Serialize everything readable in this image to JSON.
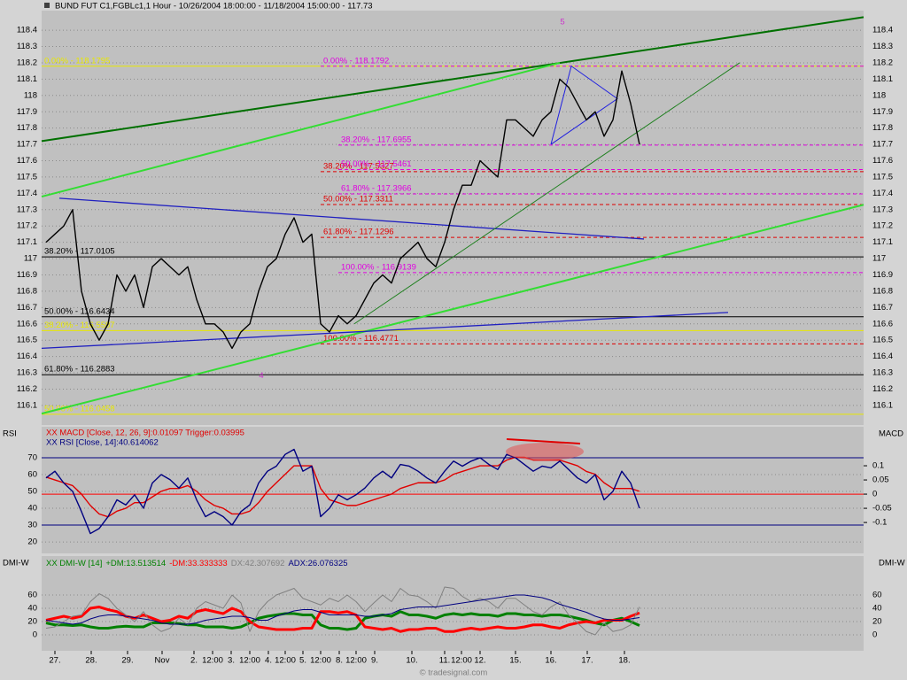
{
  "chart_data": [
    {
      "type": "line",
      "title": "BUND FUT C1,FGBLc1,1 Hour - 10/26/2004 18:00:00 - 11/18/2004 15:00:00 - 117.73",
      "x": [
        0,
        1,
        2,
        3,
        4,
        5,
        6,
        7,
        8,
        9,
        10,
        11,
        12,
        13,
        14,
        15,
        16,
        17,
        18,
        19,
        20,
        21,
        22,
        23,
        24,
        25,
        26,
        27,
        28,
        29,
        30,
        31,
        32,
        33,
        34,
        35,
        36,
        37,
        38,
        39,
        40,
        41,
        42,
        43,
        44,
        45,
        46,
        47,
        48,
        49,
        50,
        51,
        52,
        53,
        54,
        55,
        56,
        57,
        58,
        59,
        60,
        61,
        62,
        63,
        64,
        65,
        66,
        67
      ],
      "xlim": [
        -0.5,
        92.3
      ],
      "values": [
        117.1,
        117.15,
        117.2,
        117.3,
        116.8,
        116.6,
        116.5,
        116.6,
        116.9,
        116.8,
        116.9,
        116.7,
        116.95,
        117.0,
        116.95,
        116.9,
        116.95,
        116.75,
        116.6,
        116.6,
        116.55,
        116.45,
        116.55,
        116.6,
        116.8,
        116.95,
        117.0,
        117.15,
        117.25,
        117.1,
        117.15,
        116.6,
        116.55,
        116.65,
        116.6,
        116.65,
        116.75,
        116.85,
        116.9,
        116.85,
        117.0,
        117.05,
        117.1,
        117.0,
        116.95,
        117.1,
        117.3,
        117.45,
        117.45,
        117.6,
        117.55,
        117.5,
        117.85,
        117.85,
        117.8,
        117.75,
        117.85,
        117.9,
        118.1,
        118.05,
        117.95,
        117.85,
        117.9,
        117.75,
        117.85,
        118.15,
        117.95,
        117.7
      ],
      "color": "#000000",
      "ylim": [
        115.98,
        118.52
      ],
      "yticks": [
        116.1,
        116.2,
        116.3,
        116.4,
        116.5,
        116.6,
        116.7,
        116.8,
        116.9,
        117,
        117.1,
        117.2,
        117.3,
        117.4,
        117.5,
        117.6,
        117.7,
        117.8,
        117.9,
        118,
        118.1,
        118.2,
        118.3,
        118.4
      ],
      "grid": true,
      "levels": [
        {
          "label": "0.00% - 118.1795",
          "value": 118.1795,
          "color": "#e8e800",
          "x_from": -0.5,
          "dash": false
        },
        {
          "label": "38.20% - 117.0105",
          "value": 117.0105,
          "color": "#000000",
          "x_from": -0.5,
          "dash": false
        },
        {
          "label": "50.00% - 116.6434",
          "value": 116.6434,
          "color": "#000000",
          "x_from": -0.5,
          "dash": false
        },
        {
          "label": "38.20% - 116.5587",
          "value": 116.5587,
          "color": "#e8e800",
          "x_from": -0.5,
          "dash": false
        },
        {
          "label": "61.80% - 116.2883",
          "value": 116.2883,
          "color": "#000000",
          "x_from": -0.5,
          "dash": false
        },
        {
          "label": "50.00% - 116.0458",
          "value": 116.0458,
          "color": "#e8e800",
          "x_from": -0.5,
          "dash": false
        },
        {
          "label": "61.80% - 117.1296",
          "value": 117.1296,
          "color": "#e00000",
          "x_from": 31,
          "dash": true
        },
        {
          "label": "50.00% - 117.3311",
          "value": 117.3311,
          "color": "#e00000",
          "x_from": 31,
          "dash": true
        },
        {
          "label": "38.20% - 117.5327",
          "value": 117.5327,
          "color": "#e00000",
          "x_from": 31,
          "dash": true
        },
        {
          "label": "100.00% - 116.4771",
          "value": 116.4771,
          "color": "#e00000",
          "x_from": 31,
          "dash": true
        },
        {
          "label": "38.20% - 117.6955",
          "value": 117.6955,
          "color": "#e000e0",
          "x_from": 33,
          "dash": true
        },
        {
          "label": "50.00% - 117.5461",
          "value": 117.5461,
          "color": "#e000e0",
          "x_from": 33,
          "dash": true
        },
        {
          "label": "61.80% - 117.3966",
          "value": 117.3966,
          "color": "#e000e0",
          "x_from": 33,
          "dash": true
        },
        {
          "label": "100.00% - 116.9139",
          "value": 116.9139,
          "color": "#e000e0",
          "x_from": 33,
          "dash": true
        },
        {
          "label": "0.00% - 118.1792",
          "value": 118.1792,
          "color": "#e000e0",
          "x_from": 31,
          "dash": true
        }
      ],
      "trendlines": [
        {
          "color": "#007000",
          "width": 2,
          "x": [
            -0.5,
            92.3
          ],
          "y": [
            117.72,
            118.48
          ]
        },
        {
          "color": "#33dd33",
          "width": 2,
          "x": [
            -0.5,
            58.0
          ],
          "y": [
            117.38,
            118.2
          ]
        },
        {
          "color": "#33dd33",
          "width": 2,
          "x": [
            -0.5,
            92.3
          ],
          "y": [
            116.05,
            117.33
          ]
        },
        {
          "color": "#2020c0",
          "width": 1.3,
          "x": [
            1.5,
            67.5
          ],
          "y": [
            117.37,
            117.12
          ]
        },
        {
          "color": "#2020c0",
          "width": 1.3,
          "x": [
            -0.5,
            77.0
          ],
          "y": [
            116.45,
            116.67
          ]
        },
        {
          "color": "#208020",
          "width": 1,
          "x": [
            34.8,
            78.3
          ],
          "y": [
            116.6,
            118.2
          ]
        },
        {
          "color": "#2020e0",
          "width": 1,
          "x": [
            57.0,
            59.3,
            64.5,
            57.0
          ],
          "y": [
            117.7,
            118.18,
            117.98,
            117.7
          ]
        }
      ],
      "annotations": [
        {
          "text": "5",
          "x": 58.3,
          "y": 118.45,
          "color": "#cc33cc"
        },
        {
          "text": "4",
          "x": 24.3,
          "y": 116.28,
          "color": "#cc33cc"
        }
      ]
    },
    {
      "type": "line",
      "y_label": "RSI",
      "y2_label": "MACD",
      "x": [
        0,
        1,
        2,
        3,
        4,
        5,
        6,
        7,
        8,
        9,
        10,
        11,
        12,
        13,
        14,
        15,
        16,
        17,
        18,
        19,
        20,
        21,
        22,
        23,
        24,
        25,
        26,
        27,
        28,
        29,
        30,
        31,
        32,
        33,
        34,
        35,
        36,
        37,
        38,
        39,
        40,
        41,
        42,
        43,
        44,
        45,
        46,
        47,
        48,
        49,
        50,
        51,
        52,
        53,
        54,
        55,
        56,
        57,
        58,
        59,
        60,
        61,
        62,
        63,
        64,
        65,
        66,
        67
      ],
      "xlim": [
        -0.5,
        92.3
      ],
      "ylim": [
        13.2,
        88.4
      ],
      "yticks": [
        20,
        30,
        40,
        50,
        60,
        70
      ],
      "y2lim": [
        -0.209,
        0.2375
      ],
      "y2ticks": [
        -0.1,
        -0.05,
        0,
        0.05,
        0.1
      ],
      "grid": true,
      "hlines": [
        {
          "value": 70,
          "color": "#000080"
        },
        {
          "value": 30,
          "color": "#000080"
        },
        {
          "value": 0,
          "axis": "y2",
          "color": "#ff0000"
        }
      ],
      "series": [
        {
          "name": "XX MACD [Close, 12, 26, 9]:0.01097 Trigger:0.03995",
          "color": "#e00000",
          "axis": "y2",
          "values": [
            0.06,
            0.05,
            0.04,
            0.03,
            0.0,
            -0.04,
            -0.07,
            -0.08,
            -0.06,
            -0.05,
            -0.03,
            -0.03,
            -0.01,
            0.01,
            0.02,
            0.02,
            0.03,
            0.01,
            -0.02,
            -0.04,
            -0.05,
            -0.07,
            -0.07,
            -0.06,
            -0.03,
            0.01,
            0.04,
            0.07,
            0.1,
            0.1,
            0.1,
            0.02,
            -0.02,
            -0.03,
            -0.04,
            -0.04,
            -0.03,
            -0.02,
            -0.01,
            0.0,
            0.02,
            0.03,
            0.04,
            0.04,
            0.04,
            0.05,
            0.07,
            0.08,
            0.09,
            0.1,
            0.1,
            0.1,
            0.12,
            0.13,
            0.13,
            0.12,
            0.12,
            0.12,
            0.12,
            0.11,
            0.1,
            0.08,
            0.07,
            0.04,
            0.02,
            0.02,
            0.02,
            0.01
          ]
        },
        {
          "name": "XX RSI [Close, 14]:40.614062",
          "color": "#000080",
          "values": [
            58,
            62,
            55,
            50,
            38,
            25,
            28,
            35,
            45,
            42,
            48,
            40,
            55,
            60,
            57,
            52,
            58,
            45,
            35,
            38,
            35,
            30,
            38,
            42,
            55,
            62,
            65,
            72,
            75,
            62,
            65,
            35,
            40,
            48,
            45,
            48,
            52,
            58,
            62,
            58,
            66,
            65,
            62,
            58,
            55,
            62,
            68,
            65,
            68,
            70,
            66,
            63,
            72,
            70,
            66,
            62,
            65,
            64,
            68,
            63,
            58,
            55,
            60,
            45,
            50,
            62,
            55,
            40
          ]
        }
      ]
    },
    {
      "type": "line",
      "title": "XX DMI-W [14]",
      "y_label": "DMI-W",
      "x": [
        0,
        1,
        2,
        3,
        4,
        5,
        6,
        7,
        8,
        9,
        10,
        11,
        12,
        13,
        14,
        15,
        16,
        17,
        18,
        19,
        20,
        21,
        22,
        23,
        24,
        25,
        26,
        27,
        28,
        29,
        30,
        31,
        32,
        33,
        34,
        35,
        36,
        37,
        38,
        39,
        40,
        41,
        42,
        43,
        44,
        45,
        46,
        47,
        48,
        49,
        50,
        51,
        52,
        53,
        54,
        55,
        56,
        57,
        58,
        59,
        60,
        61,
        62,
        63,
        64,
        65,
        66,
        67
      ],
      "xlim": [
        -0.5,
        92.3
      ],
      "ylim": [
        -24,
        118.7
      ],
      "yticks": [
        0,
        20,
        40,
        60
      ],
      "grid": true,
      "xticks": [
        {
          "value": 1,
          "label": "27."
        },
        {
          "value": 5.1,
          "label": "28."
        },
        {
          "value": 9.2,
          "label": "29."
        },
        {
          "value": 13.1,
          "label": "Nov"
        },
        {
          "value": 16.7,
          "label": "2."
        },
        {
          "value": 18.8,
          "label": "12:00"
        },
        {
          "value": 20.9,
          "label": "3."
        },
        {
          "value": 23,
          "label": "12:00"
        },
        {
          "value": 25.1,
          "label": "4."
        },
        {
          "value": 27,
          "label": "12:00"
        },
        {
          "value": 29,
          "label": "5."
        },
        {
          "value": 31,
          "label": "12:00"
        },
        {
          "value": 33.1,
          "label": "8."
        },
        {
          "value": 35,
          "label": "12:00"
        },
        {
          "value": 37.1,
          "label": "9."
        },
        {
          "value": 41.3,
          "label": "10."
        },
        {
          "value": 45,
          "label": "11."
        },
        {
          "value": 46.9,
          "label": "12:00"
        },
        {
          "value": 49,
          "label": "12."
        },
        {
          "value": 53,
          "label": "15."
        },
        {
          "value": 57,
          "label": "16."
        },
        {
          "value": 61.1,
          "label": "17."
        },
        {
          "value": 65.3,
          "label": "18."
        }
      ],
      "series": [
        {
          "name": "+DM:13.513514",
          "color": "#008000",
          "width": 3,
          "values": [
            18,
            15,
            15,
            14,
            15,
            12,
            10,
            10,
            12,
            13,
            12,
            12,
            18,
            18,
            18,
            17,
            15,
            15,
            12,
            12,
            12,
            10,
            12,
            18,
            25,
            28,
            30,
            32,
            32,
            30,
            30,
            15,
            10,
            10,
            8,
            10,
            25,
            28,
            30,
            28,
            35,
            30,
            30,
            28,
            25,
            30,
            32,
            30,
            32,
            30,
            30,
            28,
            32,
            32,
            30,
            30,
            28,
            30,
            30,
            28,
            25,
            22,
            18,
            15,
            22,
            25,
            20,
            14
          ]
        },
        {
          "name": "-DM:33.333333",
          "color": "#ff0000",
          "width": 3,
          "values": [
            22,
            25,
            28,
            25,
            28,
            40,
            42,
            38,
            35,
            28,
            25,
            30,
            25,
            20,
            22,
            28,
            25,
            35,
            38,
            35,
            32,
            40,
            35,
            20,
            12,
            10,
            8,
            8,
            8,
            10,
            10,
            35,
            35,
            33,
            35,
            30,
            12,
            10,
            8,
            10,
            5,
            8,
            8,
            10,
            10,
            5,
            5,
            8,
            10,
            8,
            10,
            12,
            10,
            10,
            12,
            15,
            15,
            12,
            10,
            15,
            18,
            20,
            18,
            22,
            22,
            22,
            28,
            33
          ]
        },
        {
          "name": "DX:42.307692",
          "color": "#808080",
          "width": 1,
          "values": [
            10,
            12,
            20,
            28,
            30,
            50,
            62,
            55,
            40,
            30,
            20,
            35,
            15,
            5,
            10,
            25,
            15,
            40,
            50,
            45,
            40,
            60,
            48,
            5,
            35,
            50,
            60,
            65,
            70,
            55,
            50,
            45,
            55,
            50,
            60,
            50,
            35,
            48,
            60,
            50,
            70,
            60,
            58,
            50,
            40,
            72,
            70,
            58,
            50,
            55,
            50,
            40,
            55,
            55,
            45,
            35,
            30,
            42,
            50,
            30,
            18,
            5,
            0,
            18,
            5,
            8,
            15,
            42
          ]
        },
        {
          "name": "ADX:26.076325",
          "color": "#000080",
          "width": 1,
          "values": [
            22,
            20,
            18,
            16,
            18,
            24,
            28,
            30,
            30,
            28,
            26,
            24,
            22,
            18,
            16,
            16,
            16,
            18,
            22,
            24,
            26,
            28,
            28,
            26,
            22,
            22,
            28,
            32,
            36,
            38,
            38,
            34,
            30,
            30,
            30,
            30,
            28,
            28,
            30,
            32,
            38,
            40,
            42,
            42,
            42,
            44,
            46,
            48,
            50,
            52,
            54,
            56,
            58,
            60,
            60,
            58,
            56,
            52,
            46,
            42,
            38,
            34,
            28,
            24,
            22,
            22,
            24,
            26
          ]
        }
      ]
    }
  ],
  "footer": "© tradesignal.com"
}
